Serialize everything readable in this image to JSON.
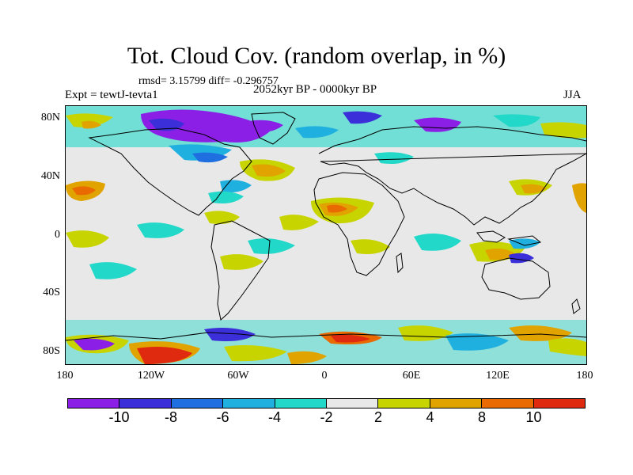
{
  "title": "Tot. Cloud Cov. (random overlap, in %)",
  "rmsd_line": "rmsd= 3.15799 diff= -0.296757",
  "period": "2052kyr BP - 0000kyr BP",
  "expt": "Expt = tewtJ-tevta1",
  "season": "JJA",
  "y_ticks": [
    "80N",
    "40N",
    "0",
    "40S",
    "80S"
  ],
  "x_ticks": [
    "180",
    "120W",
    "60W",
    "0",
    "60E",
    "120E",
    "180"
  ],
  "colorbar": {
    "labels": [
      "-10",
      "-8",
      "-6",
      "-4",
      "-2",
      "2",
      "4",
      "8",
      "10"
    ],
    "colors": [
      "#8b1fe6",
      "#3a2fd9",
      "#1f6fe0",
      "#1fb0e0",
      "#22d8c8",
      "#e8e8e8",
      "#c8d400",
      "#e0a300",
      "#e86a00",
      "#e02a10"
    ]
  },
  "map": {
    "background_color": "#e8e8e8",
    "coastline_color": "#000000"
  }
}
